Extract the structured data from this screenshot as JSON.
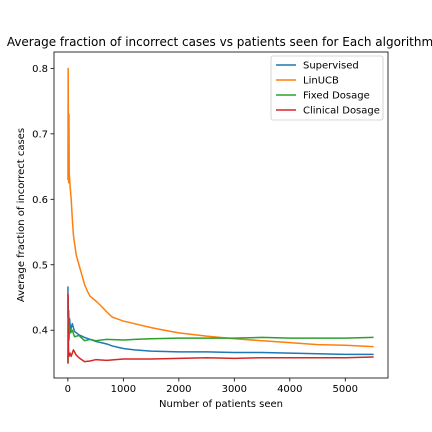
{
  "chart_data": {
    "type": "line",
    "title": "Average fraction of incorrect cases vs patients seen for Each algorithm",
    "xlabel": "Number of patients seen",
    "ylabel": "Average fraction of incorrect cases",
    "xlim": [
      -250,
      5770
    ],
    "ylim": [
      0.327,
      0.825
    ],
    "xticks": [
      0,
      1000,
      2000,
      3000,
      4000,
      5000
    ],
    "yticks": [
      0.4,
      0.5,
      0.6,
      0.7,
      0.8
    ],
    "xtick_labels": [
      "0",
      "1000",
      "2000",
      "3000",
      "4000",
      "5000"
    ],
    "ytick_labels": [
      "0.4",
      "0.5",
      "0.6",
      "0.7",
      "0.8"
    ],
    "grid": false,
    "legend_position": "top-right",
    "series": [
      {
        "name": "Supervised",
        "color": "#1f77b4",
        "points": [
          [
            1,
            0.466
          ],
          [
            3,
            0.42
          ],
          [
            6,
            0.45
          ],
          [
            10,
            0.41
          ],
          [
            15,
            0.43
          ],
          [
            20,
            0.405
          ],
          [
            30,
            0.418
          ],
          [
            50,
            0.4
          ],
          [
            80,
            0.41
          ],
          [
            120,
            0.398
          ],
          [
            200,
            0.393
          ],
          [
            300,
            0.389
          ],
          [
            400,
            0.386
          ],
          [
            500,
            0.383
          ],
          [
            600,
            0.381
          ],
          [
            700,
            0.379
          ],
          [
            800,
            0.376
          ],
          [
            900,
            0.374
          ],
          [
            1000,
            0.372
          ],
          [
            1200,
            0.37
          ],
          [
            1500,
            0.368
          ],
          [
            2000,
            0.367
          ],
          [
            2500,
            0.367
          ],
          [
            3000,
            0.366
          ],
          [
            3500,
            0.366
          ],
          [
            4000,
            0.365
          ],
          [
            4500,
            0.364
          ],
          [
            5000,
            0.363
          ],
          [
            5500,
            0.363
          ]
        ]
      },
      {
        "name": "LinUCB",
        "color": "#ff7f0e",
        "points": [
          [
            1,
            0.63
          ],
          [
            5,
            0.8
          ],
          [
            10,
            0.72
          ],
          [
            15,
            0.625
          ],
          [
            20,
            0.73
          ],
          [
            25,
            0.64
          ],
          [
            40,
            0.62
          ],
          [
            60,
            0.6
          ],
          [
            80,
            0.57
          ],
          [
            100,
            0.545
          ],
          [
            150,
            0.515
          ],
          [
            200,
            0.5
          ],
          [
            250,
            0.485
          ],
          [
            300,
            0.47
          ],
          [
            350,
            0.46
          ],
          [
            400,
            0.452
          ],
          [
            500,
            0.445
          ],
          [
            600,
            0.437
          ],
          [
            700,
            0.428
          ],
          [
            800,
            0.42
          ],
          [
            900,
            0.417
          ],
          [
            1000,
            0.414
          ],
          [
            1200,
            0.41
          ],
          [
            1500,
            0.404
          ],
          [
            1800,
            0.399
          ],
          [
            2000,
            0.396
          ],
          [
            2500,
            0.391
          ],
          [
            3000,
            0.387
          ],
          [
            3500,
            0.384
          ],
          [
            4000,
            0.381
          ],
          [
            4500,
            0.378
          ],
          [
            5000,
            0.377
          ],
          [
            5500,
            0.375
          ]
        ]
      },
      {
        "name": "Fixed Dosage",
        "color": "#2ca02c",
        "points": [
          [
            1,
            0.36
          ],
          [
            3,
            0.35
          ],
          [
            6,
            0.37
          ],
          [
            10,
            0.4
          ],
          [
            15,
            0.42
          ],
          [
            20,
            0.385
          ],
          [
            30,
            0.405
          ],
          [
            50,
            0.396
          ],
          [
            80,
            0.4
          ],
          [
            120,
            0.39
          ],
          [
            200,
            0.392
          ],
          [
            300,
            0.384
          ],
          [
            400,
            0.386
          ],
          [
            500,
            0.384
          ],
          [
            700,
            0.386
          ],
          [
            1000,
            0.385
          ],
          [
            1200,
            0.386
          ],
          [
            1500,
            0.387
          ],
          [
            2000,
            0.388
          ],
          [
            2500,
            0.388
          ],
          [
            3000,
            0.388
          ],
          [
            3500,
            0.389
          ],
          [
            4000,
            0.388
          ],
          [
            4500,
            0.388
          ],
          [
            5000,
            0.388
          ],
          [
            5500,
            0.389
          ]
        ]
      },
      {
        "name": "Clinical Dosage",
        "color": "#d62728",
        "points": [
          [
            1,
            0.35
          ],
          [
            3,
            0.455
          ],
          [
            5,
            0.38
          ],
          [
            8,
            0.4
          ],
          [
            12,
            0.37
          ],
          [
            20,
            0.36
          ],
          [
            40,
            0.365
          ],
          [
            60,
            0.36
          ],
          [
            100,
            0.37
          ],
          [
            150,
            0.362
          ],
          [
            200,
            0.358
          ],
          [
            300,
            0.352
          ],
          [
            400,
            0.353
          ],
          [
            500,
            0.355
          ],
          [
            700,
            0.354
          ],
          [
            1000,
            0.356
          ],
          [
            1500,
            0.356
          ],
          [
            2000,
            0.357
          ],
          [
            2500,
            0.358
          ],
          [
            3000,
            0.357
          ],
          [
            3500,
            0.358
          ],
          [
            4000,
            0.358
          ],
          [
            4500,
            0.358
          ],
          [
            5000,
            0.358
          ],
          [
            5500,
            0.359
          ]
        ]
      }
    ]
  }
}
